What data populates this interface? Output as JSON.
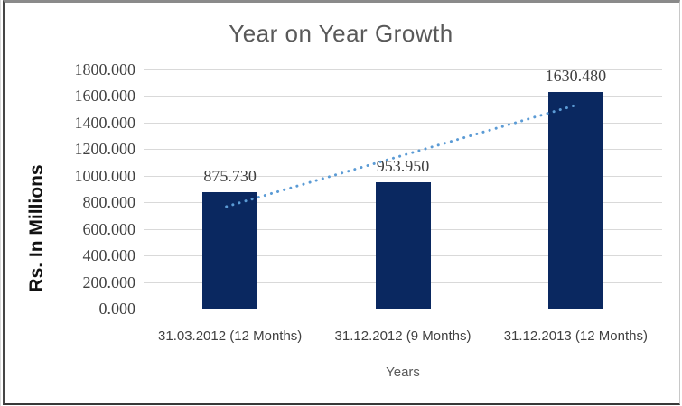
{
  "chart_data": {
    "type": "bar",
    "title": "Year on Year Growth",
    "xlabel": "Years",
    "ylabel": "Rs. In Millions",
    "categories": [
      "31.03.2012 (12 Months)",
      "31.12.2012 (9 Months)",
      "31.12.2013 (12 Months)"
    ],
    "values": [
      875.73,
      953.95,
      1630.48
    ],
    "data_labels": [
      "875.730",
      "953.950",
      "1630.480"
    ],
    "ylim": [
      0,
      1800
    ],
    "ytick_step": 200,
    "ytick_labels": [
      "1800.000",
      "1600.000",
      "1400.000",
      "1200.000",
      "1000.000",
      "800.000",
      "600.000",
      "400.000",
      "200.000",
      "0.000"
    ],
    "grid": true,
    "legend": "none",
    "trendline": {
      "type": "linear",
      "style": "dotted"
    },
    "colors": {
      "bar": "#0a2860",
      "trendline": "#5b9bd5",
      "gridline": "#d9d9d9",
      "title_text": "#595959",
      "axis_text": "#404040",
      "data_label_text": "#3f3f3f"
    }
  }
}
